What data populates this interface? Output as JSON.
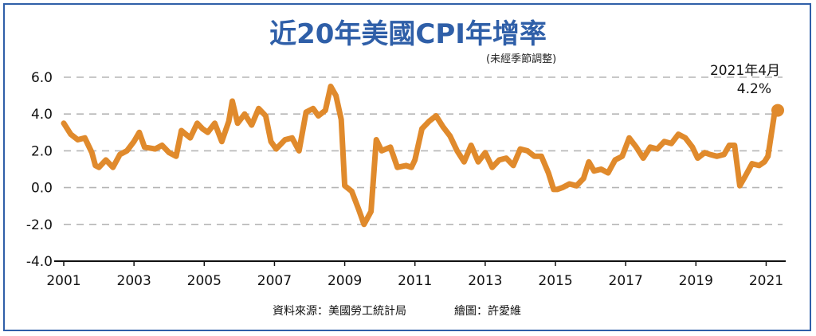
{
  "chart_data": {
    "type": "line",
    "title": "近20年美國CPI年增率",
    "subtitle": "(未經季節調整)",
    "xlabel": "",
    "ylabel": "",
    "xlim": [
      2001,
      2021.33
    ],
    "ylim": [
      -4.0,
      6.0
    ],
    "yticks": [
      6.0,
      4.0,
      2.0,
      0.0,
      -2.0,
      -4.0
    ],
    "ytick_labels": [
      "6.0",
      "4.0",
      "2.0",
      "0.0",
      "-2.0",
      "-4.0"
    ],
    "xticks": [
      2001,
      2003,
      2005,
      2007,
      2009,
      2011,
      2013,
      2015,
      2017,
      2019,
      2021
    ],
    "xtick_labels": [
      "2001",
      "2003",
      "2005",
      "2007",
      "2009",
      "2011",
      "2013",
      "2015",
      "2017",
      "2019",
      "2021"
    ],
    "grid": "horizontal-dashed",
    "series": [
      {
        "color": "#e08a2c",
        "x": [
          2001.0,
          2001.2,
          2001.4,
          2001.6,
          2001.8,
          2001.9,
          2002.0,
          2002.2,
          2002.4,
          2002.6,
          2002.8,
          2003.0,
          2003.15,
          2003.3,
          2003.6,
          2003.8,
          2004.0,
          2004.2,
          2004.35,
          2004.6,
          2004.8,
          2004.95,
          2005.1,
          2005.3,
          2005.5,
          2005.7,
          2005.8,
          2005.95,
          2006.15,
          2006.35,
          2006.55,
          2006.75,
          2006.9,
          2007.05,
          2007.3,
          2007.5,
          2007.7,
          2007.9,
          2008.1,
          2008.25,
          2008.45,
          2008.6,
          2008.75,
          2008.9,
          2009.0,
          2009.2,
          2009.4,
          2009.55,
          2009.75,
          2009.9,
          2010.05,
          2010.3,
          2010.5,
          2010.75,
          2010.9,
          2011.0,
          2011.2,
          2011.4,
          2011.6,
          2011.8,
          2012.0,
          2012.2,
          2012.4,
          2012.6,
          2012.8,
          2013.0,
          2013.2,
          2013.4,
          2013.6,
          2013.8,
          2014.0,
          2014.2,
          2014.4,
          2014.6,
          2014.8,
          2014.95,
          2015.05,
          2015.2,
          2015.4,
          2015.6,
          2015.8,
          2015.95,
          2016.1,
          2016.3,
          2016.5,
          2016.7,
          2016.9,
          2017.1,
          2017.3,
          2017.5,
          2017.7,
          2017.9,
          2018.1,
          2018.3,
          2018.5,
          2018.7,
          2018.9,
          2019.05,
          2019.25,
          2019.4,
          2019.6,
          2019.8,
          2019.95,
          2020.1,
          2020.25,
          2020.4,
          2020.6,
          2020.8,
          2020.95,
          2021.05,
          2021.25,
          2021.33
        ],
        "y": [
          3.5,
          2.9,
          2.6,
          2.7,
          1.9,
          1.2,
          1.1,
          1.5,
          1.1,
          1.8,
          2.0,
          2.5,
          3.0,
          2.2,
          2.1,
          2.3,
          1.9,
          1.7,
          3.1,
          2.7,
          3.5,
          3.2,
          3.0,
          3.5,
          2.5,
          3.6,
          4.7,
          3.5,
          4.0,
          3.4,
          4.3,
          3.9,
          2.5,
          2.1,
          2.6,
          2.7,
          2.0,
          4.1,
          4.3,
          3.9,
          4.2,
          5.5,
          5.0,
          3.7,
          0.1,
          -0.2,
          -1.2,
          -2.0,
          -1.3,
          2.6,
          2.0,
          2.2,
          1.1,
          1.2,
          1.1,
          1.5,
          3.2,
          3.6,
          3.9,
          3.3,
          2.8,
          2.0,
          1.4,
          2.3,
          1.4,
          1.9,
          1.1,
          1.5,
          1.6,
          1.2,
          2.1,
          2.0,
          1.7,
          1.7,
          0.8,
          -0.1,
          -0.1,
          0.0,
          0.2,
          0.1,
          0.5,
          1.4,
          0.9,
          1.0,
          0.8,
          1.5,
          1.7,
          2.7,
          2.2,
          1.6,
          2.2,
          2.1,
          2.5,
          2.4,
          2.9,
          2.7,
          2.2,
          1.6,
          1.9,
          1.8,
          1.7,
          1.8,
          2.3,
          2.3,
          0.1,
          0.6,
          1.3,
          1.2,
          1.4,
          1.7,
          4.2,
          4.2
        ]
      }
    ],
    "annotation": {
      "date_label": "2021年4月",
      "value_label": "4.2%",
      "x": 2021.33,
      "y": 4.2
    }
  },
  "footer": {
    "source": "資料來源：美國勞工統計局",
    "author": "繪圖：許愛維"
  }
}
